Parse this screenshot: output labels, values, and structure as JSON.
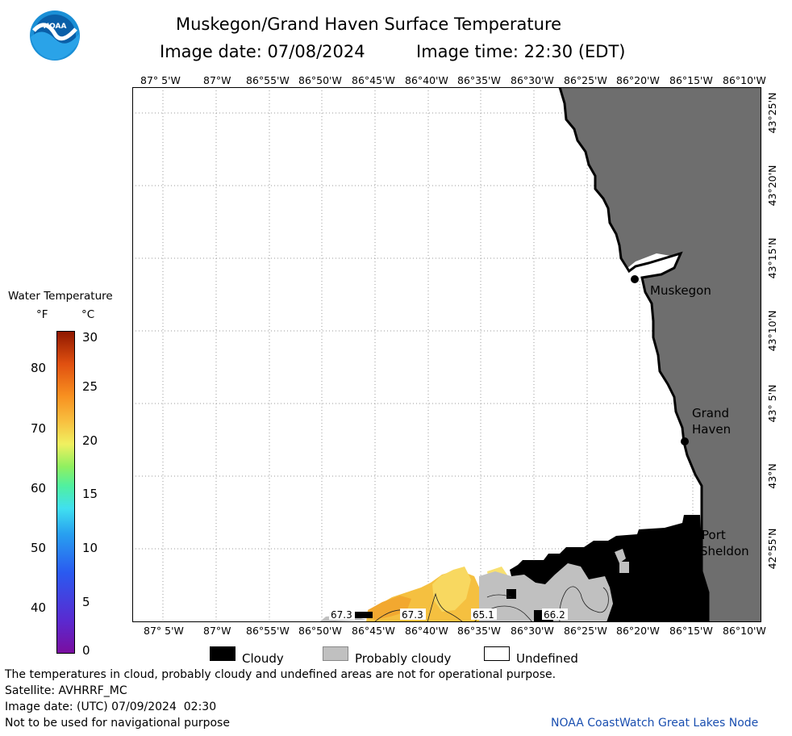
{
  "header": {
    "title": "Muskegon/Grand Haven Surface Temperature",
    "image_date": "Image date: 07/08/2024",
    "image_time": "Image time: 22:30 (EDT)"
  },
  "logo": {
    "text": "NOAA"
  },
  "map": {
    "lon_labels": [
      "87° 5'W",
      "87°W",
      "86°55'W",
      "86°50'W",
      "86°45'W",
      "86°40'W",
      "86°35'W",
      "86°30'W",
      "86°25'W",
      "86°20'W",
      "86°15'W",
      "86°10'W"
    ],
    "lat_labels": [
      "43°25'N",
      "43°20'N",
      "43°15'N",
      "43°10'N",
      "43° 5'N",
      "43°N",
      "42°55'N"
    ],
    "places": {
      "muskegon": "Muskegon",
      "grand_haven_1": "Grand",
      "grand_haven_2": "Haven",
      "port_sheldon_1": "Port",
      "port_sheldon_2": "Sheldon"
    },
    "contour_labels": [
      "67.3",
      "67.3",
      "65.1",
      "66.2"
    ],
    "colors": {
      "land": "#6e6e6e",
      "cloudy": "#000000",
      "probably_cloudy": "#c0c0c0",
      "undefined": "#ffffff"
    }
  },
  "legend": {
    "title": "Water Temperature",
    "unit_f": "°F",
    "unit_c": "°C",
    "f_ticks": [
      "80",
      "70",
      "60",
      "50",
      "40"
    ],
    "c_ticks": [
      "30",
      "25",
      "20",
      "15",
      "10",
      "5",
      "0"
    ],
    "cloudy": "Cloudy",
    "probably_cloudy": "Probably cloudy",
    "undefined": "Undefined"
  },
  "footer": {
    "disclaimer": "The temperatures in cloud, probably cloudy and undefined areas are not for operational purpose.",
    "satellite": "Satellite: AVHRRF_MC",
    "utc_date": "Image date: (UTC) 07/09/2024  02:30",
    "nav": "Not to be used for navigational purpose",
    "credit": "NOAA CoastWatch Great Lakes Node"
  }
}
